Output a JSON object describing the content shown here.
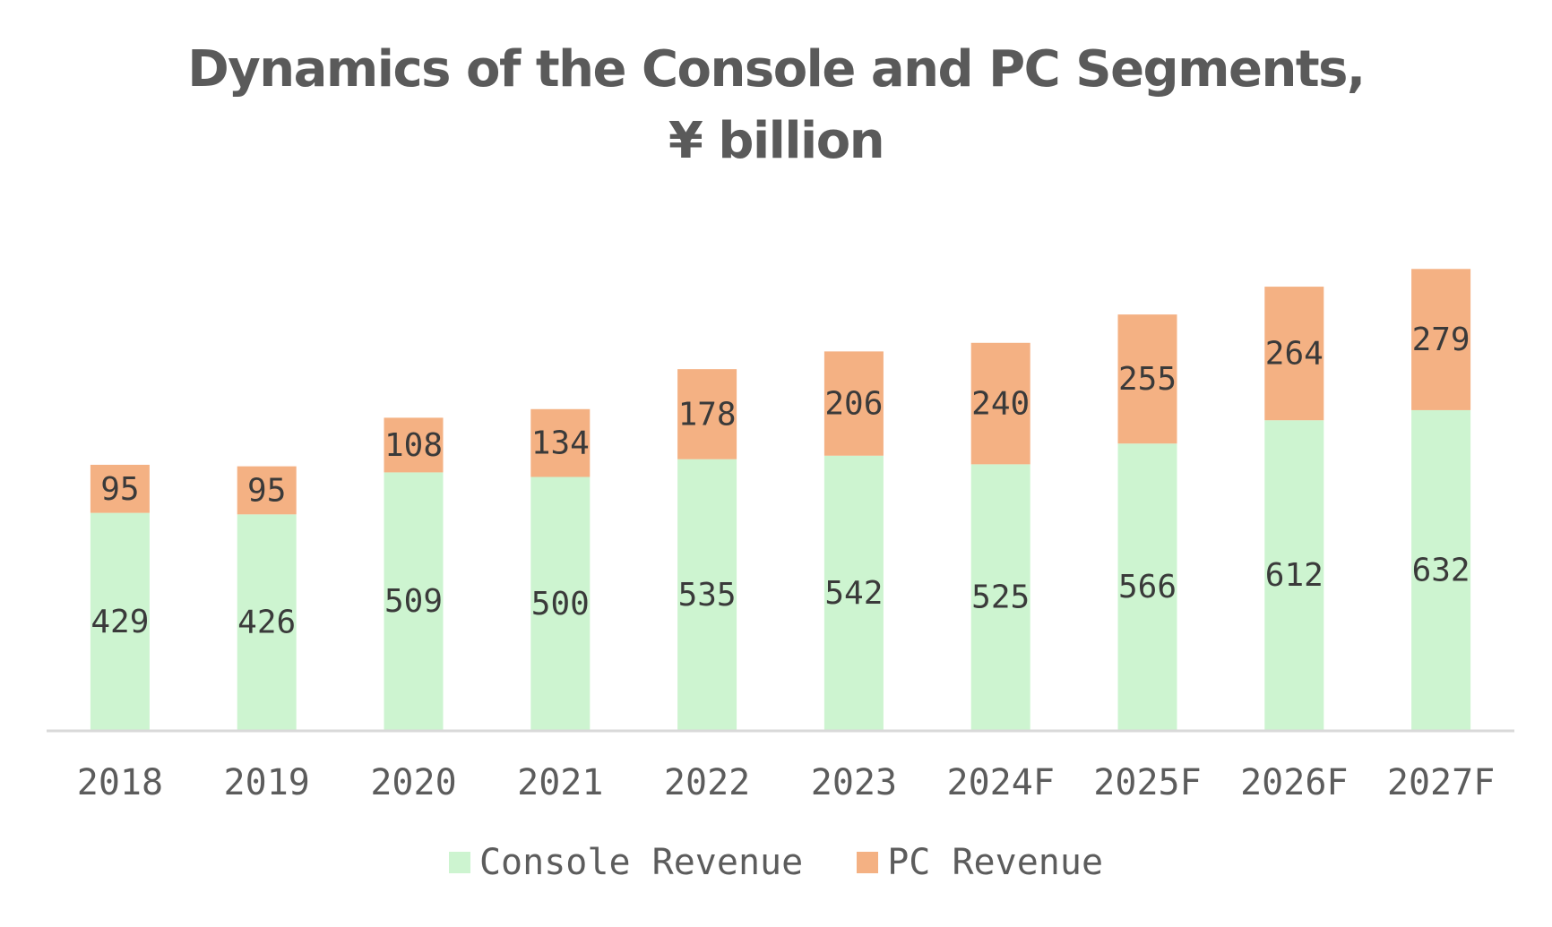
{
  "chart_data": {
    "type": "bar",
    "stacked": true,
    "title_line1": "Dynamics of the Console and PC Segments,",
    "title_line2": "¥ billion",
    "categories": [
      "2018",
      "2019",
      "2020",
      "2021",
      "2022",
      "2023",
      "2024F",
      "2025F",
      "2026F",
      "2027F"
    ],
    "series": [
      {
        "name": "Console Revenue",
        "color": "#cdf4d0",
        "values": [
          429,
          426,
          509,
          500,
          535,
          542,
          525,
          566,
          612,
          632
        ]
      },
      {
        "name": "PC Revenue",
        "color": "#f4b183",
        "values": [
          95,
          95,
          108,
          134,
          178,
          206,
          240,
          255,
          264,
          279
        ]
      }
    ],
    "xlabel": "",
    "ylabel": "",
    "ylim": [
      0,
      950
    ],
    "grid": false,
    "legend": "bottom",
    "axis_color": "#d9d9d9"
  }
}
